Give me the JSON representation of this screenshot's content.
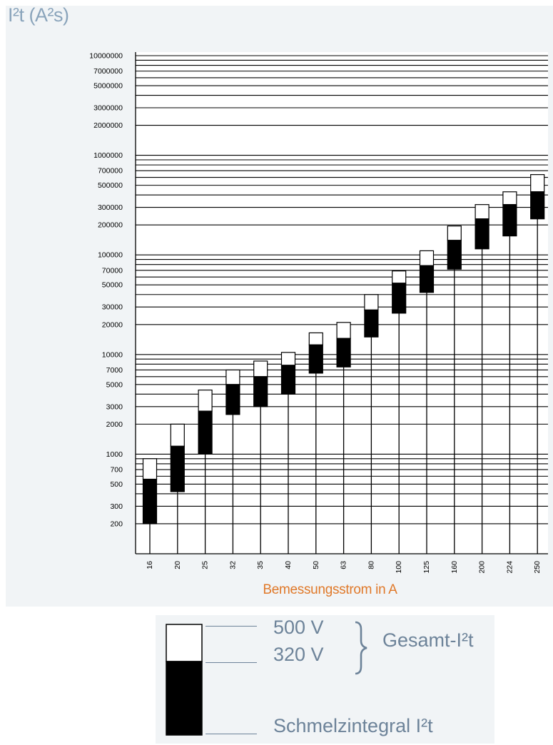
{
  "chart_data": {
    "type": "bar",
    "yscale": "log",
    "ylim": [
      120,
      11000000
    ],
    "ylabel": "I²t (A²s)",
    "xlabel": "Bemessungsstrom in A",
    "grid": true,
    "categories": [
      "16",
      "20",
      "25",
      "32",
      "35",
      "40",
      "50",
      "63",
      "80",
      "100",
      "125",
      "160",
      "200",
      "224",
      "250"
    ],
    "series": [
      {
        "name": "Schmelzintegral I²t",
        "values": [
          200,
          420,
          1000,
          2500,
          3000,
          4000,
          6500,
          7500,
          15000,
          26000,
          42000,
          72000,
          115000,
          155000,
          230000
        ]
      },
      {
        "name": "320 V",
        "values": [
          560,
          1200,
          2700,
          5000,
          6000,
          7800,
          12500,
          14500,
          28000,
          52000,
          78000,
          140000,
          230000,
          320000,
          430000
        ]
      },
      {
        "name": "500 V",
        "values": [
          900,
          2000,
          4400,
          7000,
          8600,
          10500,
          16500,
          21000,
          40000,
          69000,
          110000,
          195000,
          320000,
          430000,
          640000
        ]
      }
    ],
    "yticks": [
      200,
      300,
      500,
      700,
      1000,
      2000,
      3000,
      5000,
      7000,
      10000,
      20000,
      30000,
      50000,
      70000,
      100000,
      200000,
      300000,
      500000,
      700000,
      1000000,
      2000000,
      3000000,
      5000000,
      7000000,
      10000000
    ],
    "yticklabels": [
      "200",
      "300",
      "500",
      "700",
      "1000",
      "2000",
      "3000",
      "5000",
      "7000",
      "10000",
      "20000",
      "30000",
      "50000",
      "70000",
      "100000",
      "200000",
      "300000",
      "500000",
      "700000",
      "1000000",
      "2000000",
      "3000000",
      "5000000",
      "7000000",
      "10000000"
    ]
  },
  "legend": {
    "v500": "500 V",
    "v320": "320 V",
    "gesamt": "Gesamt-I²t",
    "schmelz": "Schmelzintegral I²t"
  }
}
